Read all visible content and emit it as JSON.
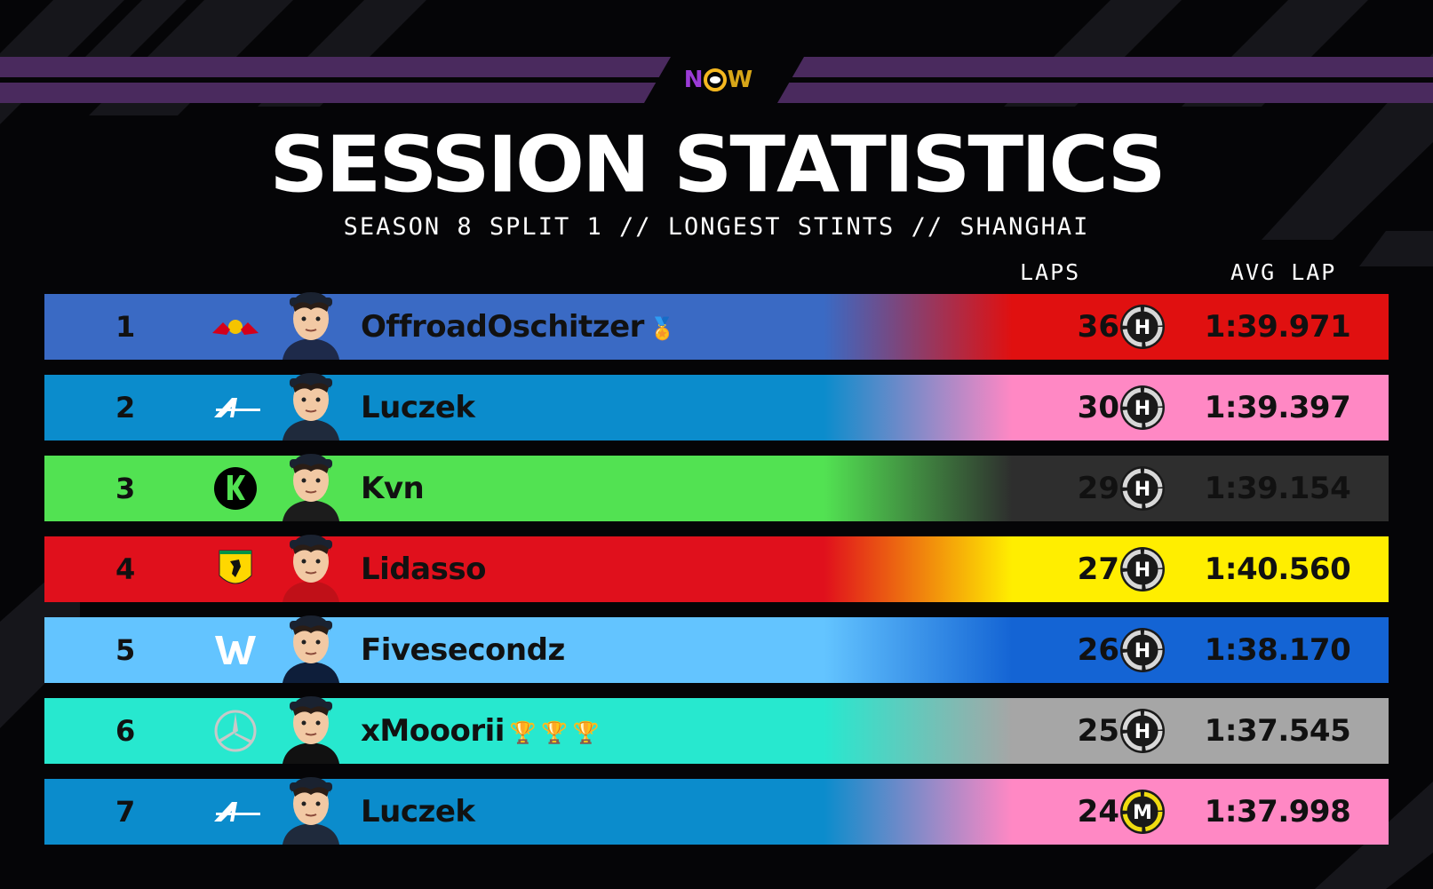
{
  "header": {
    "logo_text": "NOW",
    "title": "SESSION STATISTICS",
    "subtitle": "SEASON 8 SPLIT 1 // LONGEST STINTS // SHANGHAI"
  },
  "columns": {
    "laps": "LAPS",
    "avg_lap": "AVG LAP"
  },
  "rows": [
    {
      "pos": "1",
      "team": "red-bull",
      "driver": "OffroadOschitzer",
      "trophies": [
        "🏅"
      ],
      "laps": "36",
      "tyre": "H",
      "avg": "1:39.971",
      "left_color": "#3a6ac4",
      "right_color": "#e01010",
      "tyre_ring": "#d8d8d8"
    },
    {
      "pos": "2",
      "team": "alpine",
      "driver": "Luczek",
      "trophies": [],
      "laps": "30",
      "tyre": "H",
      "avg": "1:39.397",
      "left_color": "#0b8ccc",
      "right_color": "#ff88c4",
      "tyre_ring": "#d8d8d8"
    },
    {
      "pos": "3",
      "team": "sauber",
      "driver": "Kvn",
      "trophies": [],
      "laps": "29",
      "tyre": "H",
      "avg": "1:39.154",
      "left_color": "#52e252",
      "right_color": "#2e2e2e",
      "tyre_ring": "#d8d8d8"
    },
    {
      "pos": "4",
      "team": "ferrari",
      "driver": "Lidasso",
      "trophies": [],
      "laps": "27",
      "tyre": "H",
      "avg": "1:40.560",
      "left_color": "#e0101c",
      "right_color": "#ffee00",
      "tyre_ring": "#d8d8d8"
    },
    {
      "pos": "5",
      "team": "williams",
      "driver": "Fivesecondz",
      "trophies": [],
      "laps": "26",
      "tyre": "H",
      "avg": "1:38.170",
      "left_color": "#63c4ff",
      "right_color": "#1464d4",
      "tyre_ring": "#d8d8d8"
    },
    {
      "pos": "6",
      "team": "mercedes",
      "driver": "xMooorii",
      "trophies": [
        "🏆",
        "🏆",
        "🏆"
      ],
      "laps": "25",
      "tyre": "H",
      "avg": "1:37.545",
      "left_color": "#27e8cf",
      "right_color": "#a6a6a6",
      "tyre_ring": "#d8d8d8"
    },
    {
      "pos": "7",
      "team": "alpine",
      "driver": "Luczek",
      "trophies": [],
      "laps": "24",
      "tyre": "M",
      "avg": "1:37.998",
      "left_color": "#0b8ccc",
      "right_color": "#ff88c4",
      "tyre_ring": "#f0dc10"
    }
  ]
}
